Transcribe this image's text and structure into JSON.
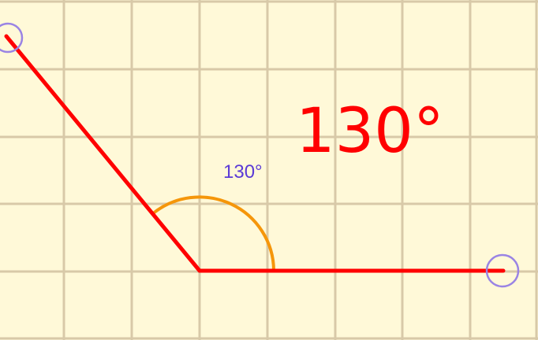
{
  "diagram": {
    "angle_value": 130,
    "angle_label_large": "130°",
    "angle_label_small": "130°",
    "colors": {
      "background": "#fff9d8",
      "grid": "#d8c9a8",
      "rays": "#ff0000",
      "arc": "#f5960a",
      "handles": "#9a84e4",
      "small_label": "#5b3bd6",
      "large_label": "#ff0000"
    },
    "handles": [
      "ray-end-handle-left",
      "ray-end-handle-right"
    ]
  }
}
